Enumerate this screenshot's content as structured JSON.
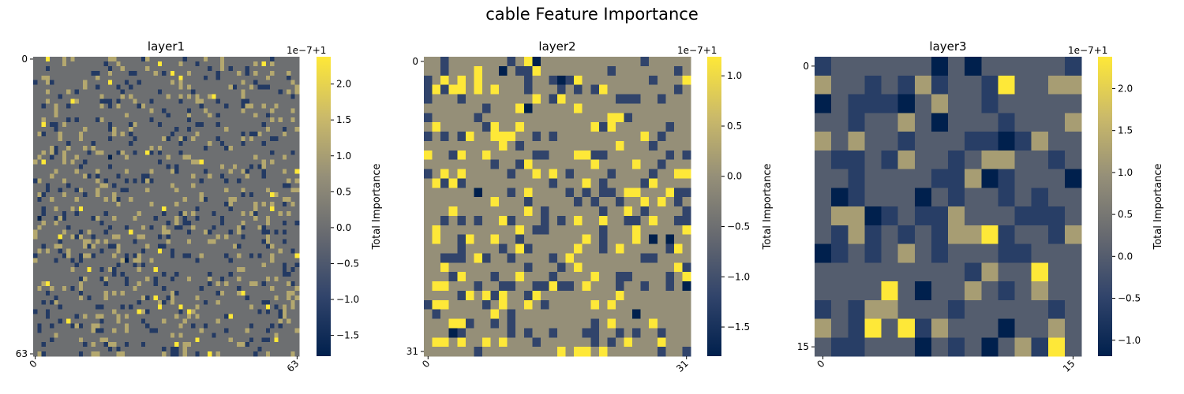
{
  "figure": {
    "suptitle": "cable Feature Importance"
  },
  "colormap": {
    "name": "cividis",
    "stops": [
      "#00204d",
      "#31446b",
      "#666970",
      "#958f78",
      "#cbba69",
      "#fee838"
    ]
  },
  "chart_data": [
    {
      "type": "heatmap",
      "title": "layer1",
      "size": 64,
      "x_ticks": [
        "0",
        "63"
      ],
      "y_ticks": [
        "0",
        "63"
      ],
      "colorbar": {
        "label": "Total Importance",
        "offset_text": "1e−7+1",
        "ticks": [
          "−1.5",
          "−1.0",
          "−0.5",
          "0.0",
          "0.5",
          "1.0",
          "1.5",
          "2.0"
        ],
        "tick_values": [
          -1.5,
          -1.0,
          -0.5,
          0.0,
          0.5,
          1.0,
          1.5,
          2.0
        ],
        "vmin": -1.79,
        "vmax": 2.38
      },
      "level_values": [
        0.0,
        1.19,
        -1.19,
        2.38,
        -1.79
      ],
      "level_fractions": [
        0.82,
        0.09,
        0.08,
        0.008,
        0.002
      ]
    },
    {
      "type": "heatmap",
      "title": "layer2",
      "size": 32,
      "x_ticks": [
        "0",
        "31"
      ],
      "y_ticks": [
        "0",
        "31"
      ],
      "colorbar": {
        "label": "Total Importance",
        "offset_text": "1e−7+1",
        "ticks": [
          "−1.5",
          "−1.0",
          "−0.5",
          "0.0",
          "0.5",
          "1.0"
        ],
        "tick_values": [
          -1.5,
          -1.0,
          -0.5,
          0.0,
          0.5,
          1.0
        ],
        "vmin": -1.79,
        "vmax": 1.19
      },
      "level_values": [
        0.0,
        1.19,
        -1.19,
        -1.79
      ],
      "level_fractions": [
        0.72,
        0.12,
        0.15,
        0.01
      ]
    },
    {
      "type": "heatmap",
      "title": "layer3",
      "size": 16,
      "x_ticks": [
        "0",
        "15"
      ],
      "y_ticks": [
        "0",
        "15"
      ],
      "colorbar": {
        "label": "Total Importance",
        "offset_text": "1e−7+1",
        "ticks": [
          "−1.0",
          "−0.5",
          "0.0",
          "0.5",
          "1.0",
          "1.5",
          "2.0"
        ],
        "tick_values": [
          -1.0,
          -0.5,
          0.0,
          0.5,
          1.0,
          1.5,
          2.0
        ],
        "vmin": -1.19,
        "vmax": 2.38
      },
      "level_values": [
        0.0,
        -0.6,
        1.19,
        -1.19,
        2.38
      ],
      "level_fractions": [
        0.6,
        0.22,
        0.1,
        0.06,
        0.02
      ]
    }
  ]
}
